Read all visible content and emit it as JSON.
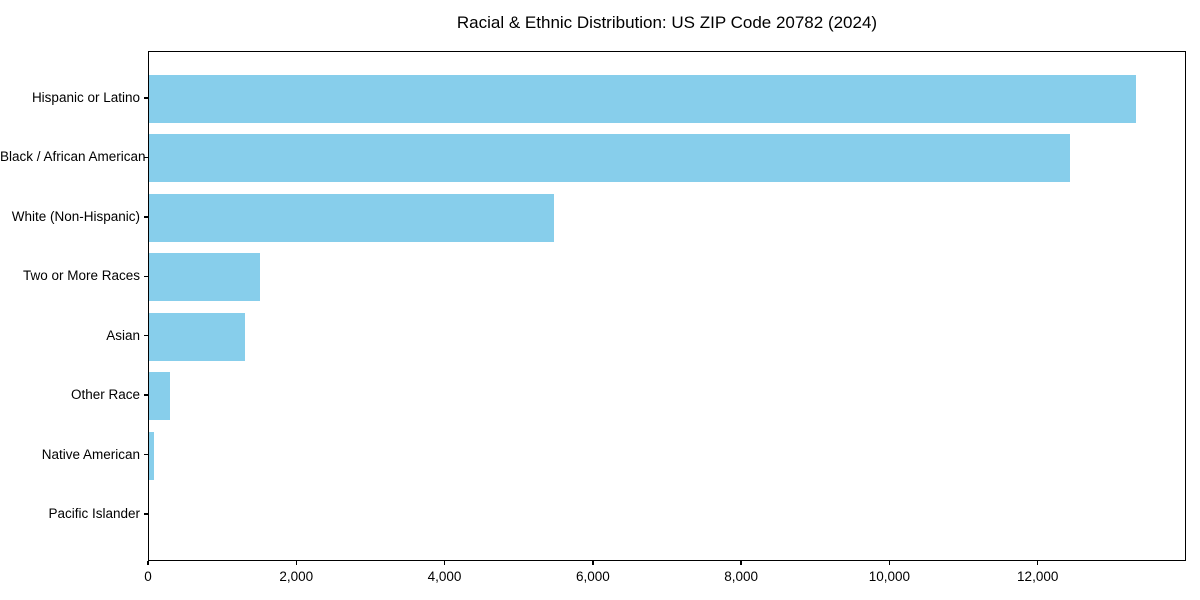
{
  "chart_data": {
    "type": "bar",
    "orientation": "horizontal",
    "title": "Racial & Ethnic Distribution: US ZIP Code 20782 (2024)",
    "categories": [
      "Hispanic or Latino",
      "Black / African American",
      "White (Non-Hispanic)",
      "Two or More Races",
      "Asian",
      "Other Race",
      "Native American",
      "Pacific Islander"
    ],
    "values": [
      13310,
      12420,
      5460,
      1500,
      1300,
      285,
      70,
      0
    ],
    "xlabel": "",
    "ylabel": "",
    "xlim": [
      0,
      14000
    ],
    "xticks": [
      0,
      2000,
      4000,
      6000,
      8000,
      10000,
      12000
    ],
    "xtick_labels": [
      "0",
      "2,000",
      "4,000",
      "6,000",
      "8,000",
      "10,000",
      "12,000"
    ],
    "bar_color": "#87CEEB",
    "axis_color": "#000000",
    "background_color": "#ffffff",
    "grid": false,
    "legend": "none"
  }
}
